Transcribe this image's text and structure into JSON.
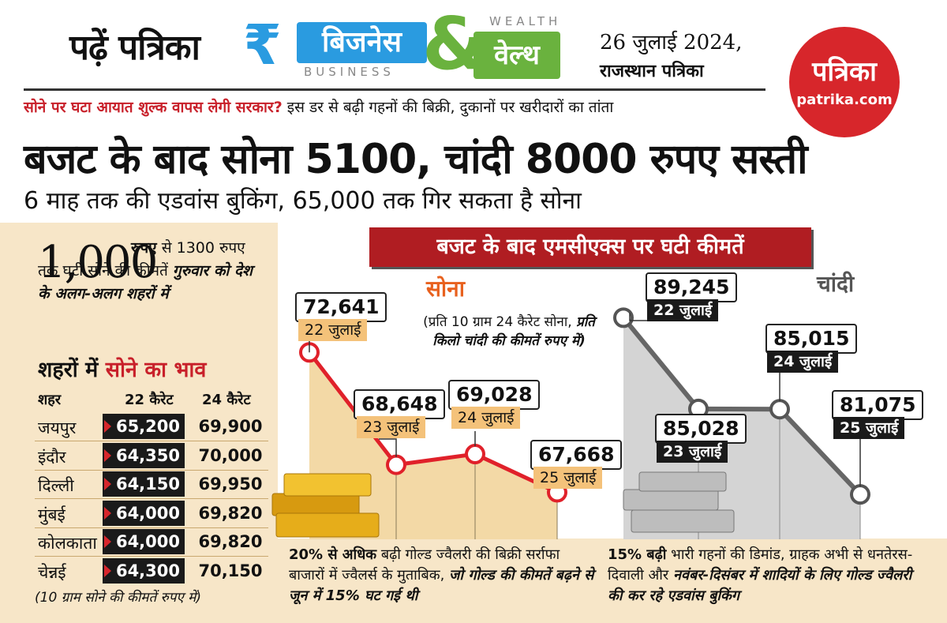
{
  "header": {
    "read_label": "पढ़ें पत्रिका",
    "brand_rupee_glyph": "₹",
    "brand_business": "बिजनेस",
    "brand_business_en": "BUSINESS",
    "brand_amp": "&",
    "brand_wealth": "वेल्थ",
    "brand_wealth_en": "WEALTH",
    "date": "26 जुलाई 2024,",
    "newspaper": "राजस्थान पत्रिका",
    "logo_text": "पत्रिका",
    "logo_url": "patrika.com"
  },
  "colors": {
    "brand_blue": "#2a9be0",
    "brand_green": "#6ab23e",
    "logo_red": "#d7262b",
    "banner_red": "#b01d22",
    "gold_line": "#e0212a",
    "silver_line": "#666666"
  },
  "headline": {
    "kicker_red": "सोने पर घटा आयात शुल्क वापस लेगी सरकार?",
    "kicker_rest": "इस डर से बढ़ी गहनों की बिक्री, दुकानों पर खरीदारों का तांता",
    "main": "बजट के बाद सोना 5100, चांदी 8000 रुपए सस्ती",
    "sub": "6 माह तक की एडवांस बुकिंग, 65,000 तक गिर सकता है सोना"
  },
  "left": {
    "big_number": "1,000",
    "lead_bold_1": "रुपए",
    "lead_text_1": "से 1300 रुपए तक घटी सोने की कीमतें",
    "lead_bold_2": "गुरुवार को देश के अलग-अलग शहरों में",
    "table_title_black": "शहरों में",
    "table_title_red": "सोने का भाव",
    "headers": [
      "शहर",
      "22 कैरेट",
      "24 कैरेट"
    ],
    "rows": [
      {
        "city": "जयपुर",
        "k22": "65,200",
        "k24": "69,900"
      },
      {
        "city": "इंदौर",
        "k22": "64,350",
        "k24": "70,000"
      },
      {
        "city": "दिल्ली",
        "k22": "64,150",
        "k24": "69,950"
      },
      {
        "city": "मुंबई",
        "k22": "64,000",
        "k24": "69,820"
      },
      {
        "city": "कोलकाता",
        "k22": "64,000",
        "k24": "69,820"
      },
      {
        "city": "चेन्नई",
        "k22": "64,300",
        "k24": "70,150"
      }
    ],
    "note": "(10 ग्राम सोने की कीमतें रुपए में)"
  },
  "chart": {
    "banner": "बजट के बाद एमसीएक्स पर घटी कीमतें",
    "gold_title": "सोना",
    "silver_title": "चांदी",
    "unit_note_plain_1": "(प्रति 10 ग्राम 24 कैरेट सोना,",
    "unit_note_bold": "प्रति किलो चांदी की कीमतें रुपए में)"
  },
  "chart_data": [
    {
      "type": "line",
      "title": "सोना",
      "categories": [
        "22 जुलाई",
        "23 जुलाई",
        "24 जुलाई",
        "25 जुलाई"
      ],
      "value_labels": [
        "72,641",
        "68,648",
        "69,028",
        "67,668"
      ],
      "values": [
        72641,
        68648,
        69028,
        67668
      ]
    },
    {
      "type": "line",
      "title": "चांदी",
      "categories": [
        "22 जुलाई",
        "23 जुलाई",
        "24 जुलाई",
        "25 जुलाई"
      ],
      "value_labels": [
        "89,245",
        "85,028",
        "85,015",
        "81,075"
      ],
      "values": [
        89245,
        85028,
        85015,
        81075
      ]
    }
  ],
  "footnotes": {
    "left_bold": "20% से अधिक",
    "left_text": "बढ़ी गोल्ड ज्वैलरी की बिक्री सर्राफा बाजारों में ज्वैलर्स के मुताबिक,",
    "left_bold_italic": "जो गोल्ड की कीमतें बढ़ने से जून में 15% घट गई थी",
    "right_bold": "15% बढ़ी",
    "right_text": "भारी गहनों की डिमांड, ग्राहक अभी से धनतेरस-दिवाली और",
    "right_bold_italic": "नवंबर-दिसंबर में शादियों के लिए गोल्ड ज्वैलरी की कर रहे एडवांस बुकिंग"
  }
}
